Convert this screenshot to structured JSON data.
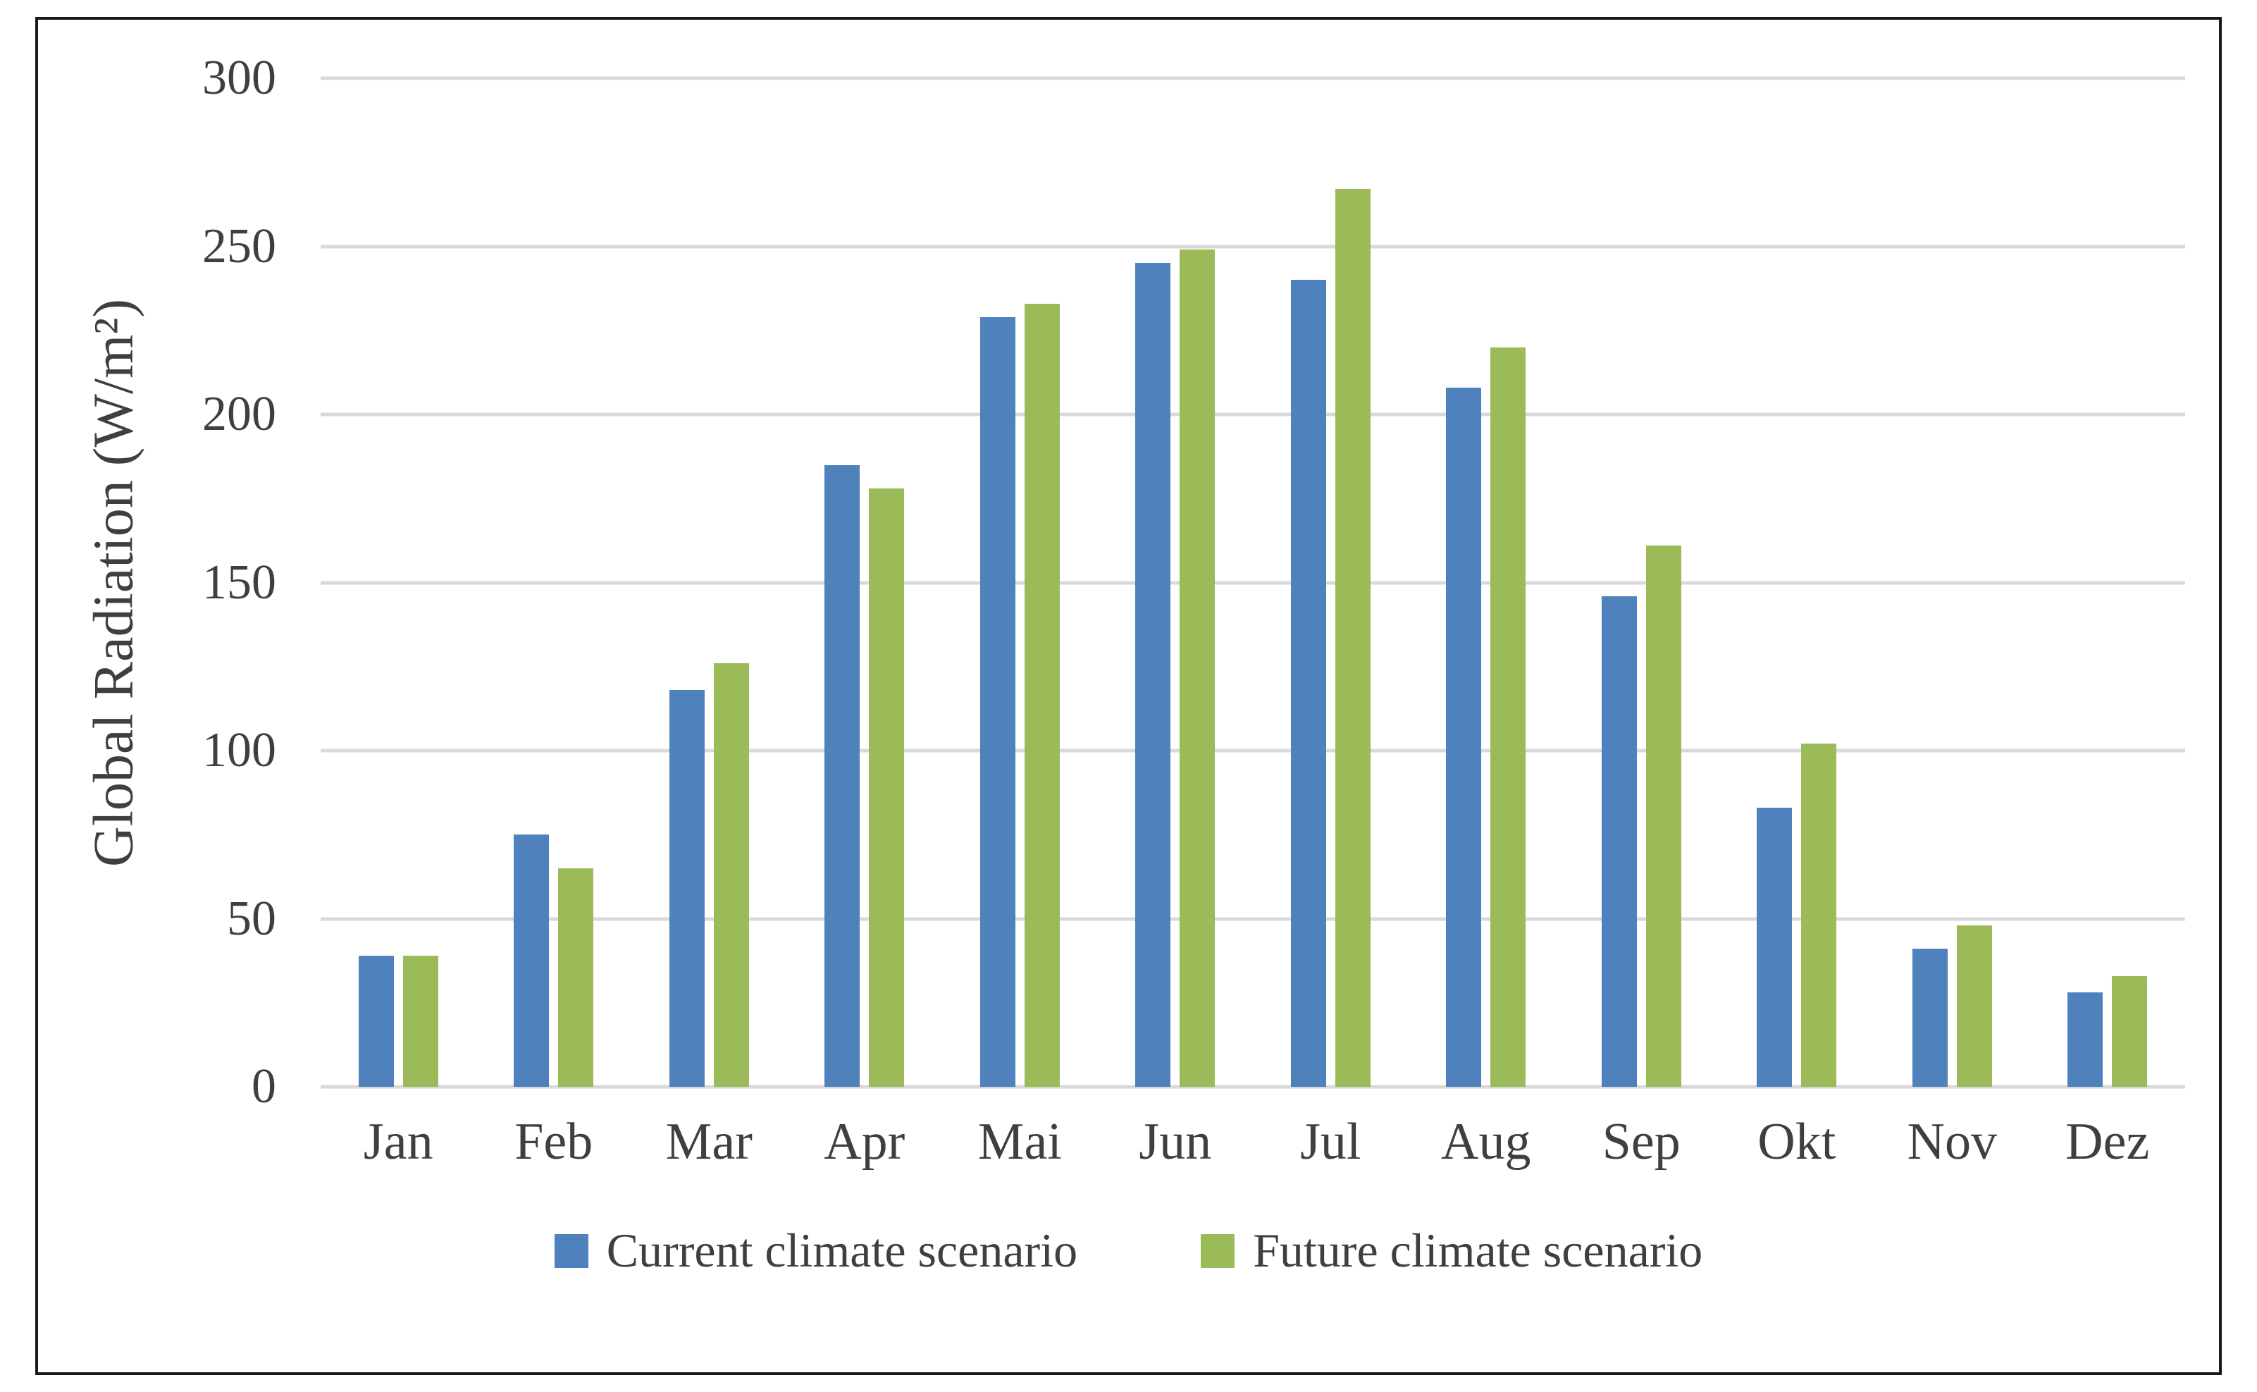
{
  "figure": {
    "background_color": "#FFFFFF",
    "border_color": "#1A1A1A",
    "text_color": "#3F3F3F"
  },
  "chart_data": {
    "type": "bar",
    "title": "",
    "xlabel": "",
    "ylabel": "Global Radiation (W/m²)",
    "ylim": [
      0,
      300
    ],
    "yticks": [
      0,
      50,
      100,
      150,
      200,
      250,
      300
    ],
    "grid": "horizontal",
    "gridline_color": "#D9D9D9",
    "legend_position": "bottom",
    "categories": [
      "Jan",
      "Feb",
      "Mar",
      "Apr",
      "Mai",
      "Jun",
      "Jul",
      "Aug",
      "Sep",
      "Okt",
      "Nov",
      "Dez"
    ],
    "series": [
      {
        "name": "Current climate scenario",
        "color": "#4F81BD",
        "values": [
          39,
          75,
          118,
          185,
          229,
          245,
          240,
          208,
          146,
          83,
          41,
          28
        ]
      },
      {
        "name": "Future climate scenario",
        "color": "#9BBB59",
        "values": [
          39,
          65,
          126,
          178,
          233,
          249,
          267,
          220,
          161,
          102,
          48,
          33
        ]
      }
    ]
  }
}
